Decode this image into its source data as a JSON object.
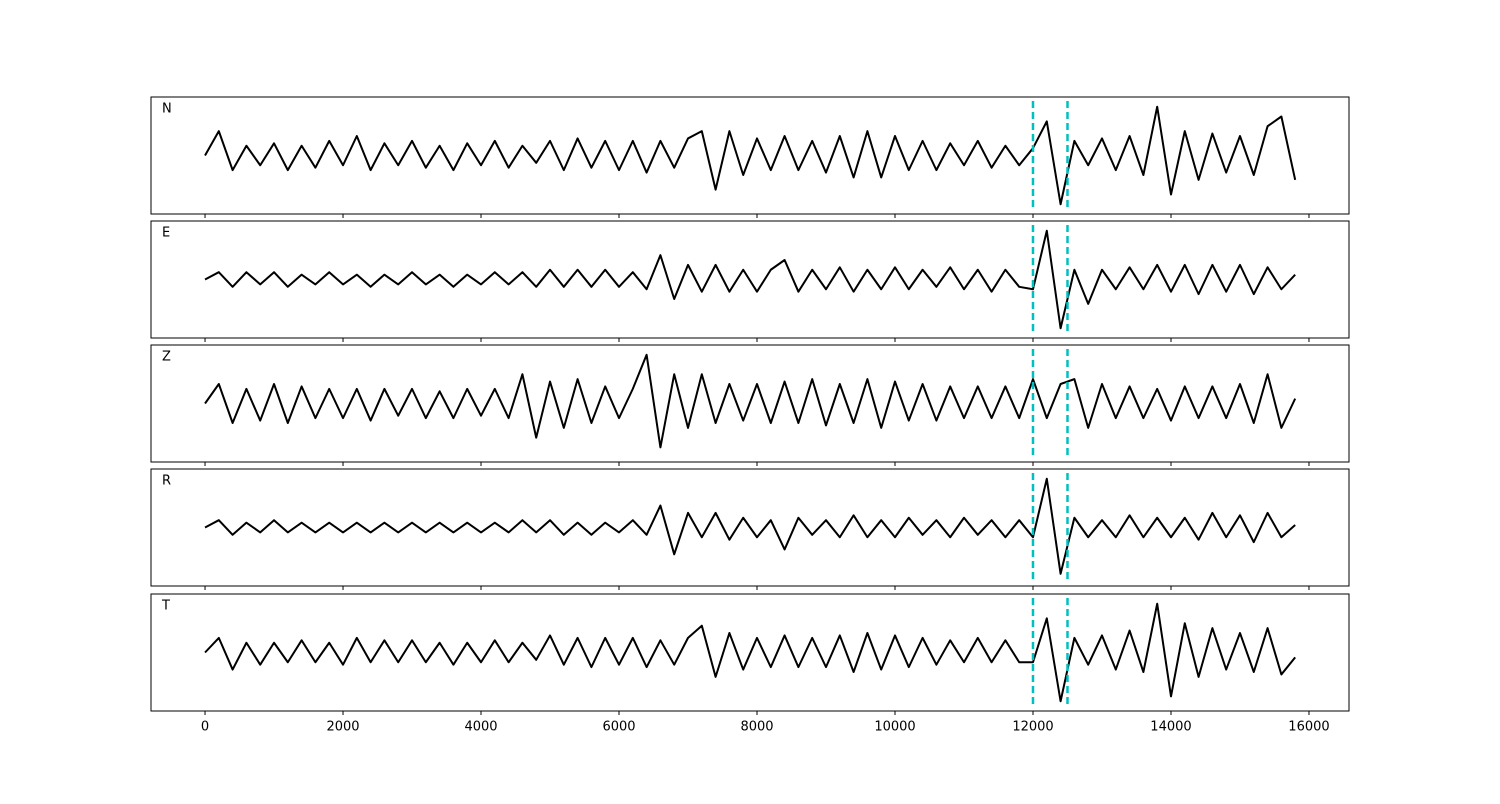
{
  "chart_data": {
    "type": "line",
    "x": [
      0,
      200,
      400,
      600,
      800,
      1000,
      1200,
      1400,
      1600,
      1800,
      2000,
      2200,
      2400,
      2600,
      2800,
      3000,
      3200,
      3400,
      3600,
      3800,
      4000,
      4200,
      4400,
      4600,
      4800,
      5000,
      5200,
      5400,
      5600,
      5800,
      6000,
      6200,
      6400,
      6600,
      6800,
      7000,
      7200,
      7400,
      7600,
      7800,
      8000,
      8200,
      8400,
      8600,
      8800,
      9000,
      9200,
      9400,
      9600,
      9800,
      10000,
      10200,
      10400,
      10600,
      10800,
      11000,
      11200,
      11400,
      11600,
      11800,
      12000,
      12200,
      12400,
      12600,
      12800,
      13000,
      13200,
      13400,
      13600,
      13800,
      14000,
      14200,
      14400,
      14600,
      14800,
      15000,
      15200,
      15400,
      15600,
      15800
    ],
    "xlim": [
      -783,
      16580
    ],
    "xticks": [
      0,
      2000,
      4000,
      6000,
      8000,
      10000,
      12000,
      14000,
      16000
    ],
    "vlines": [
      12000,
      12500
    ],
    "vline_color": "#00bfbf",
    "line_color": "#000000",
    "ylim": [
      -1.2,
      1.2
    ],
    "series": [
      {
        "name": "N",
        "values": [
          0,
          0.5,
          -0.3,
          0.2,
          -0.2,
          0.25,
          -0.3,
          0.2,
          -0.25,
          0.3,
          -0.2,
          0.4,
          -0.3,
          0.25,
          -0.2,
          0.3,
          -0.25,
          0.2,
          -0.3,
          0.25,
          -0.2,
          0.3,
          -0.25,
          0.2,
          -0.15,
          0.3,
          -0.3,
          0.35,
          -0.25,
          0.3,
          -0.3,
          0.3,
          -0.35,
          0.3,
          -0.25,
          0.35,
          0.5,
          -0.7,
          0.5,
          -0.4,
          0.35,
          -0.3,
          0.4,
          -0.3,
          0.3,
          -0.35,
          0.4,
          -0.45,
          0.5,
          -0.45,
          0.4,
          -0.3,
          0.3,
          -0.3,
          0.25,
          -0.2,
          0.3,
          -0.25,
          0.2,
          -0.2,
          0.15,
          0.7,
          -1.0,
          0.3,
          -0.2,
          0.35,
          -0.3,
          0.4,
          -0.4,
          1.0,
          -0.8,
          0.5,
          -0.5,
          0.45,
          -0.35,
          0.4,
          -0.4,
          0.6,
          0.8,
          -0.5
        ]
      },
      {
        "name": "E",
        "values": [
          0,
          0.15,
          -0.15,
          0.15,
          -0.1,
          0.15,
          -0.15,
          0.1,
          -0.1,
          0.15,
          -0.1,
          0.1,
          -0.15,
          0.1,
          -0.1,
          0.15,
          -0.1,
          0.1,
          -0.15,
          0.1,
          -0.1,
          0.15,
          -0.1,
          0.15,
          -0.15,
          0.2,
          -0.15,
          0.2,
          -0.15,
          0.2,
          -0.15,
          0.15,
          -0.2,
          0.5,
          -0.4,
          0.3,
          -0.25,
          0.3,
          -0.25,
          0.2,
          -0.25,
          0.2,
          0.4,
          -0.25,
          0.2,
          -0.2,
          0.25,
          -0.25,
          0.2,
          -0.2,
          0.25,
          -0.2,
          0.2,
          -0.15,
          0.25,
          -0.2,
          0.2,
          -0.25,
          0.2,
          -0.15,
          -0.2,
          1.0,
          -1.0,
          0.2,
          -0.5,
          0.2,
          -0.2,
          0.25,
          -0.2,
          0.3,
          -0.25,
          0.3,
          -0.3,
          0.3,
          -0.25,
          0.3,
          -0.3,
          0.25,
          -0.2,
          0.1
        ]
      },
      {
        "name": "Z",
        "values": [
          0,
          0.4,
          -0.4,
          0.3,
          -0.35,
          0.4,
          -0.4,
          0.35,
          -0.3,
          0.3,
          -0.3,
          0.3,
          -0.35,
          0.3,
          -0.25,
          0.3,
          -0.3,
          0.25,
          -0.3,
          0.3,
          -0.25,
          0.3,
          -0.3,
          0.6,
          -0.7,
          0.45,
          -0.5,
          0.5,
          -0.4,
          0.35,
          -0.3,
          0.3,
          1.0,
          -0.9,
          0.6,
          -0.5,
          0.6,
          -0.4,
          0.4,
          -0.35,
          0.4,
          -0.4,
          0.45,
          -0.4,
          0.5,
          -0.45,
          0.4,
          -0.4,
          0.5,
          -0.5,
          0.45,
          -0.35,
          0.4,
          -0.35,
          0.35,
          -0.3,
          0.35,
          -0.3,
          0.35,
          -0.3,
          0.5,
          -0.3,
          0.4,
          0.5,
          -0.5,
          0.4,
          -0.3,
          0.35,
          -0.3,
          0.3,
          -0.35,
          0.35,
          -0.3,
          0.35,
          -0.3,
          0.4,
          -0.4,
          0.6,
          -0.5,
          0.1
        ]
      },
      {
        "name": "R",
        "values": [
          0,
          0.15,
          -0.15,
          0.1,
          -0.1,
          0.15,
          -0.1,
          0.1,
          -0.1,
          0.1,
          -0.1,
          0.1,
          -0.1,
          0.1,
          -0.1,
          0.1,
          -0.1,
          0.1,
          -0.1,
          0.1,
          -0.1,
          0.1,
          -0.1,
          0.15,
          -0.1,
          0.15,
          -0.15,
          0.1,
          -0.15,
          0.1,
          -0.1,
          0.15,
          -0.15,
          0.45,
          -0.55,
          0.3,
          -0.2,
          0.3,
          -0.25,
          0.2,
          -0.2,
          0.15,
          -0.45,
          0.2,
          -0.15,
          0.15,
          -0.2,
          0.25,
          -0.2,
          0.15,
          -0.2,
          0.2,
          -0.15,
          0.15,
          -0.2,
          0.2,
          -0.15,
          0.15,
          -0.2,
          0.15,
          -0.2,
          1.0,
          -0.95,
          0.2,
          -0.2,
          0.15,
          -0.2,
          0.25,
          -0.2,
          0.2,
          -0.2,
          0.2,
          -0.25,
          0.3,
          -0.2,
          0.25,
          -0.3,
          0.3,
          -0.2,
          0.05
        ]
      },
      {
        "name": "T",
        "values": [
          0,
          0.3,
          -0.35,
          0.2,
          -0.25,
          0.2,
          -0.2,
          0.25,
          -0.2,
          0.2,
          -0.25,
          0.3,
          -0.2,
          0.25,
          -0.2,
          0.25,
          -0.2,
          0.2,
          -0.25,
          0.2,
          -0.2,
          0.25,
          -0.2,
          0.2,
          -0.15,
          0.35,
          -0.25,
          0.3,
          -0.3,
          0.3,
          -0.25,
          0.3,
          -0.3,
          0.25,
          -0.25,
          0.3,
          0.55,
          -0.5,
          0.4,
          -0.35,
          0.3,
          -0.3,
          0.35,
          -0.3,
          0.3,
          -0.3,
          0.35,
          -0.4,
          0.4,
          -0.35,
          0.35,
          -0.3,
          0.3,
          -0.25,
          0.25,
          -0.2,
          0.3,
          -0.2,
          0.25,
          -0.2,
          -0.2,
          0.7,
          -1.0,
          0.3,
          -0.25,
          0.35,
          -0.35,
          0.45,
          -0.4,
          1.0,
          -0.9,
          0.6,
          -0.5,
          0.5,
          -0.35,
          0.4,
          -0.4,
          0.5,
          -0.45,
          -0.1
        ]
      }
    ]
  }
}
